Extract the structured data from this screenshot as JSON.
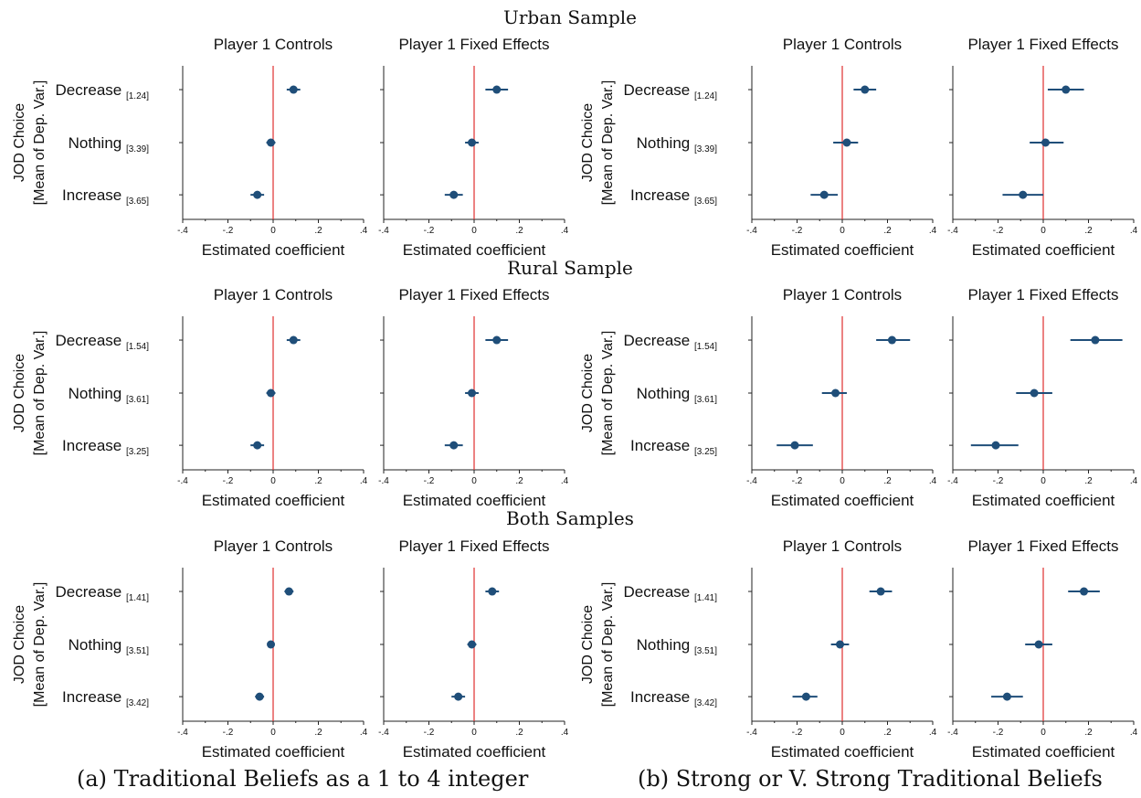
{
  "figure": {
    "rows": [
      {
        "title": "Urban Sample",
        "means": [
          "[1.24]",
          "[3.39]",
          "[3.65]"
        ]
      },
      {
        "title": "Rural Sample",
        "means": [
          "[1.54]",
          "[3.61]",
          "[3.25]"
        ]
      },
      {
        "title": "Both Samples",
        "means": [
          "[1.41]",
          "[3.51]",
          "[3.42]"
        ]
      }
    ],
    "ylabel_line1": "JOD Choice",
    "ylabel_line2": "[Mean of Dep. Var.]",
    "panel_titles": [
      "Player 1 Controls",
      "Player 1 Fixed Effects"
    ],
    "xlabel": "Estimated coefficient",
    "categories": [
      "Decrease",
      "Nothing",
      "Increase"
    ],
    "xticks": [
      -0.4,
      -0.2,
      0,
      0.2,
      0.4
    ],
    "xtick_labels": [
      "-.4",
      "-.2",
      "0",
      ".2",
      ".4"
    ],
    "captions": [
      "(a) Traditional Beliefs as a 1 to 4 integer",
      "(b) Strong or V. Strong Traditional Beliefs"
    ]
  },
  "colors": {
    "point": "#1f4e79",
    "zero_line": "#e03030",
    "axis": "#222222"
  },
  "chart_data": [
    {
      "type": "scatter",
      "group": "a",
      "sample": "Urban Sample",
      "title": "Player 1 Controls",
      "xlabel": "Estimated coefficient",
      "xlim": [
        -0.4,
        0.4
      ],
      "categories": [
        "Decrease",
        "Nothing",
        "Increase"
      ],
      "coef": [
        0.09,
        -0.01,
        -0.07
      ],
      "ci_low": [
        0.06,
        -0.03,
        -0.1
      ],
      "ci_high": [
        0.12,
        0.01,
        -0.04
      ]
    },
    {
      "type": "scatter",
      "group": "a",
      "sample": "Urban Sample",
      "title": "Player 1 Fixed Effects",
      "xlabel": "Estimated coefficient",
      "xlim": [
        -0.4,
        0.4
      ],
      "categories": [
        "Decrease",
        "Nothing",
        "Increase"
      ],
      "coef": [
        0.1,
        -0.01,
        -0.09
      ],
      "ci_low": [
        0.05,
        -0.04,
        -0.13
      ],
      "ci_high": [
        0.15,
        0.02,
        -0.05
      ]
    },
    {
      "type": "scatter",
      "group": "b",
      "sample": "Urban Sample",
      "title": "Player 1 Controls",
      "xlabel": "Estimated coefficient",
      "xlim": [
        -0.4,
        0.4
      ],
      "categories": [
        "Decrease",
        "Nothing",
        "Increase"
      ],
      "coef": [
        0.1,
        0.02,
        -0.08
      ],
      "ci_low": [
        0.05,
        -0.04,
        -0.14
      ],
      "ci_high": [
        0.15,
        0.07,
        -0.02
      ]
    },
    {
      "type": "scatter",
      "group": "b",
      "sample": "Urban Sample",
      "title": "Player 1 Fixed Effects",
      "xlabel": "Estimated coefficient",
      "xlim": [
        -0.4,
        0.4
      ],
      "categories": [
        "Decrease",
        "Nothing",
        "Increase"
      ],
      "coef": [
        0.1,
        0.01,
        -0.09
      ],
      "ci_low": [
        0.02,
        -0.06,
        -0.18
      ],
      "ci_high": [
        0.18,
        0.09,
        0.0
      ]
    },
    {
      "type": "scatter",
      "group": "a",
      "sample": "Rural Sample",
      "title": "Player 1 Controls",
      "xlabel": "Estimated coefficient",
      "xlim": [
        -0.4,
        0.4
      ],
      "categories": [
        "Decrease",
        "Nothing",
        "Increase"
      ],
      "coef": [
        0.09,
        -0.01,
        -0.07
      ],
      "ci_low": [
        0.06,
        -0.03,
        -0.1
      ],
      "ci_high": [
        0.12,
        0.01,
        -0.04
      ]
    },
    {
      "type": "scatter",
      "group": "a",
      "sample": "Rural Sample",
      "title": "Player 1 Fixed Effects",
      "xlabel": "Estimated coefficient",
      "xlim": [
        -0.4,
        0.4
      ],
      "categories": [
        "Decrease",
        "Nothing",
        "Increase"
      ],
      "coef": [
        0.1,
        -0.01,
        -0.09
      ],
      "ci_low": [
        0.05,
        -0.04,
        -0.13
      ],
      "ci_high": [
        0.15,
        0.02,
        -0.05
      ]
    },
    {
      "type": "scatter",
      "group": "b",
      "sample": "Rural Sample",
      "title": "Player 1 Controls",
      "xlabel": "Estimated coefficient",
      "xlim": [
        -0.4,
        0.4
      ],
      "categories": [
        "Decrease",
        "Nothing",
        "Increase"
      ],
      "coef": [
        0.22,
        -0.03,
        -0.21
      ],
      "ci_low": [
        0.15,
        -0.09,
        -0.29
      ],
      "ci_high": [
        0.3,
        0.02,
        -0.13
      ]
    },
    {
      "type": "scatter",
      "group": "b",
      "sample": "Rural Sample",
      "title": "Player 1 Fixed Effects",
      "xlabel": "Estimated coefficient",
      "xlim": [
        -0.4,
        0.4
      ],
      "categories": [
        "Decrease",
        "Nothing",
        "Increase"
      ],
      "coef": [
        0.23,
        -0.04,
        -0.21
      ],
      "ci_low": [
        0.12,
        -0.12,
        -0.32
      ],
      "ci_high": [
        0.35,
        0.04,
        -0.11
      ]
    },
    {
      "type": "scatter",
      "group": "a",
      "sample": "Both Samples",
      "title": "Player 1 Controls",
      "xlabel": "Estimated coefficient",
      "xlim": [
        -0.4,
        0.4
      ],
      "categories": [
        "Decrease",
        "Nothing",
        "Increase"
      ],
      "coef": [
        0.07,
        -0.01,
        -0.06
      ],
      "ci_low": [
        0.05,
        -0.02,
        -0.08
      ],
      "ci_high": [
        0.09,
        0.0,
        -0.04
      ]
    },
    {
      "type": "scatter",
      "group": "a",
      "sample": "Both Samples",
      "title": "Player 1 Fixed Effects",
      "xlabel": "Estimated coefficient",
      "xlim": [
        -0.4,
        0.4
      ],
      "categories": [
        "Decrease",
        "Nothing",
        "Increase"
      ],
      "coef": [
        0.08,
        -0.01,
        -0.07
      ],
      "ci_low": [
        0.05,
        -0.03,
        -0.1
      ],
      "ci_high": [
        0.11,
        0.01,
        -0.04
      ]
    },
    {
      "type": "scatter",
      "group": "b",
      "sample": "Both Samples",
      "title": "Player 1 Controls",
      "xlabel": "Estimated coefficient",
      "xlim": [
        -0.4,
        0.4
      ],
      "categories": [
        "Decrease",
        "Nothing",
        "Increase"
      ],
      "coef": [
        0.17,
        -0.01,
        -0.16
      ],
      "ci_low": [
        0.12,
        -0.05,
        -0.22
      ],
      "ci_high": [
        0.22,
        0.03,
        -0.11
      ]
    },
    {
      "type": "scatter",
      "group": "b",
      "sample": "Both Samples",
      "title": "Player 1 Fixed Effects",
      "xlabel": "Estimated coefficient",
      "xlim": [
        -0.4,
        0.4
      ],
      "categories": [
        "Decrease",
        "Nothing",
        "Increase"
      ],
      "coef": [
        0.18,
        -0.02,
        -0.16
      ],
      "ci_low": [
        0.11,
        -0.08,
        -0.23
      ],
      "ci_high": [
        0.25,
        0.04,
        -0.09
      ]
    }
  ]
}
